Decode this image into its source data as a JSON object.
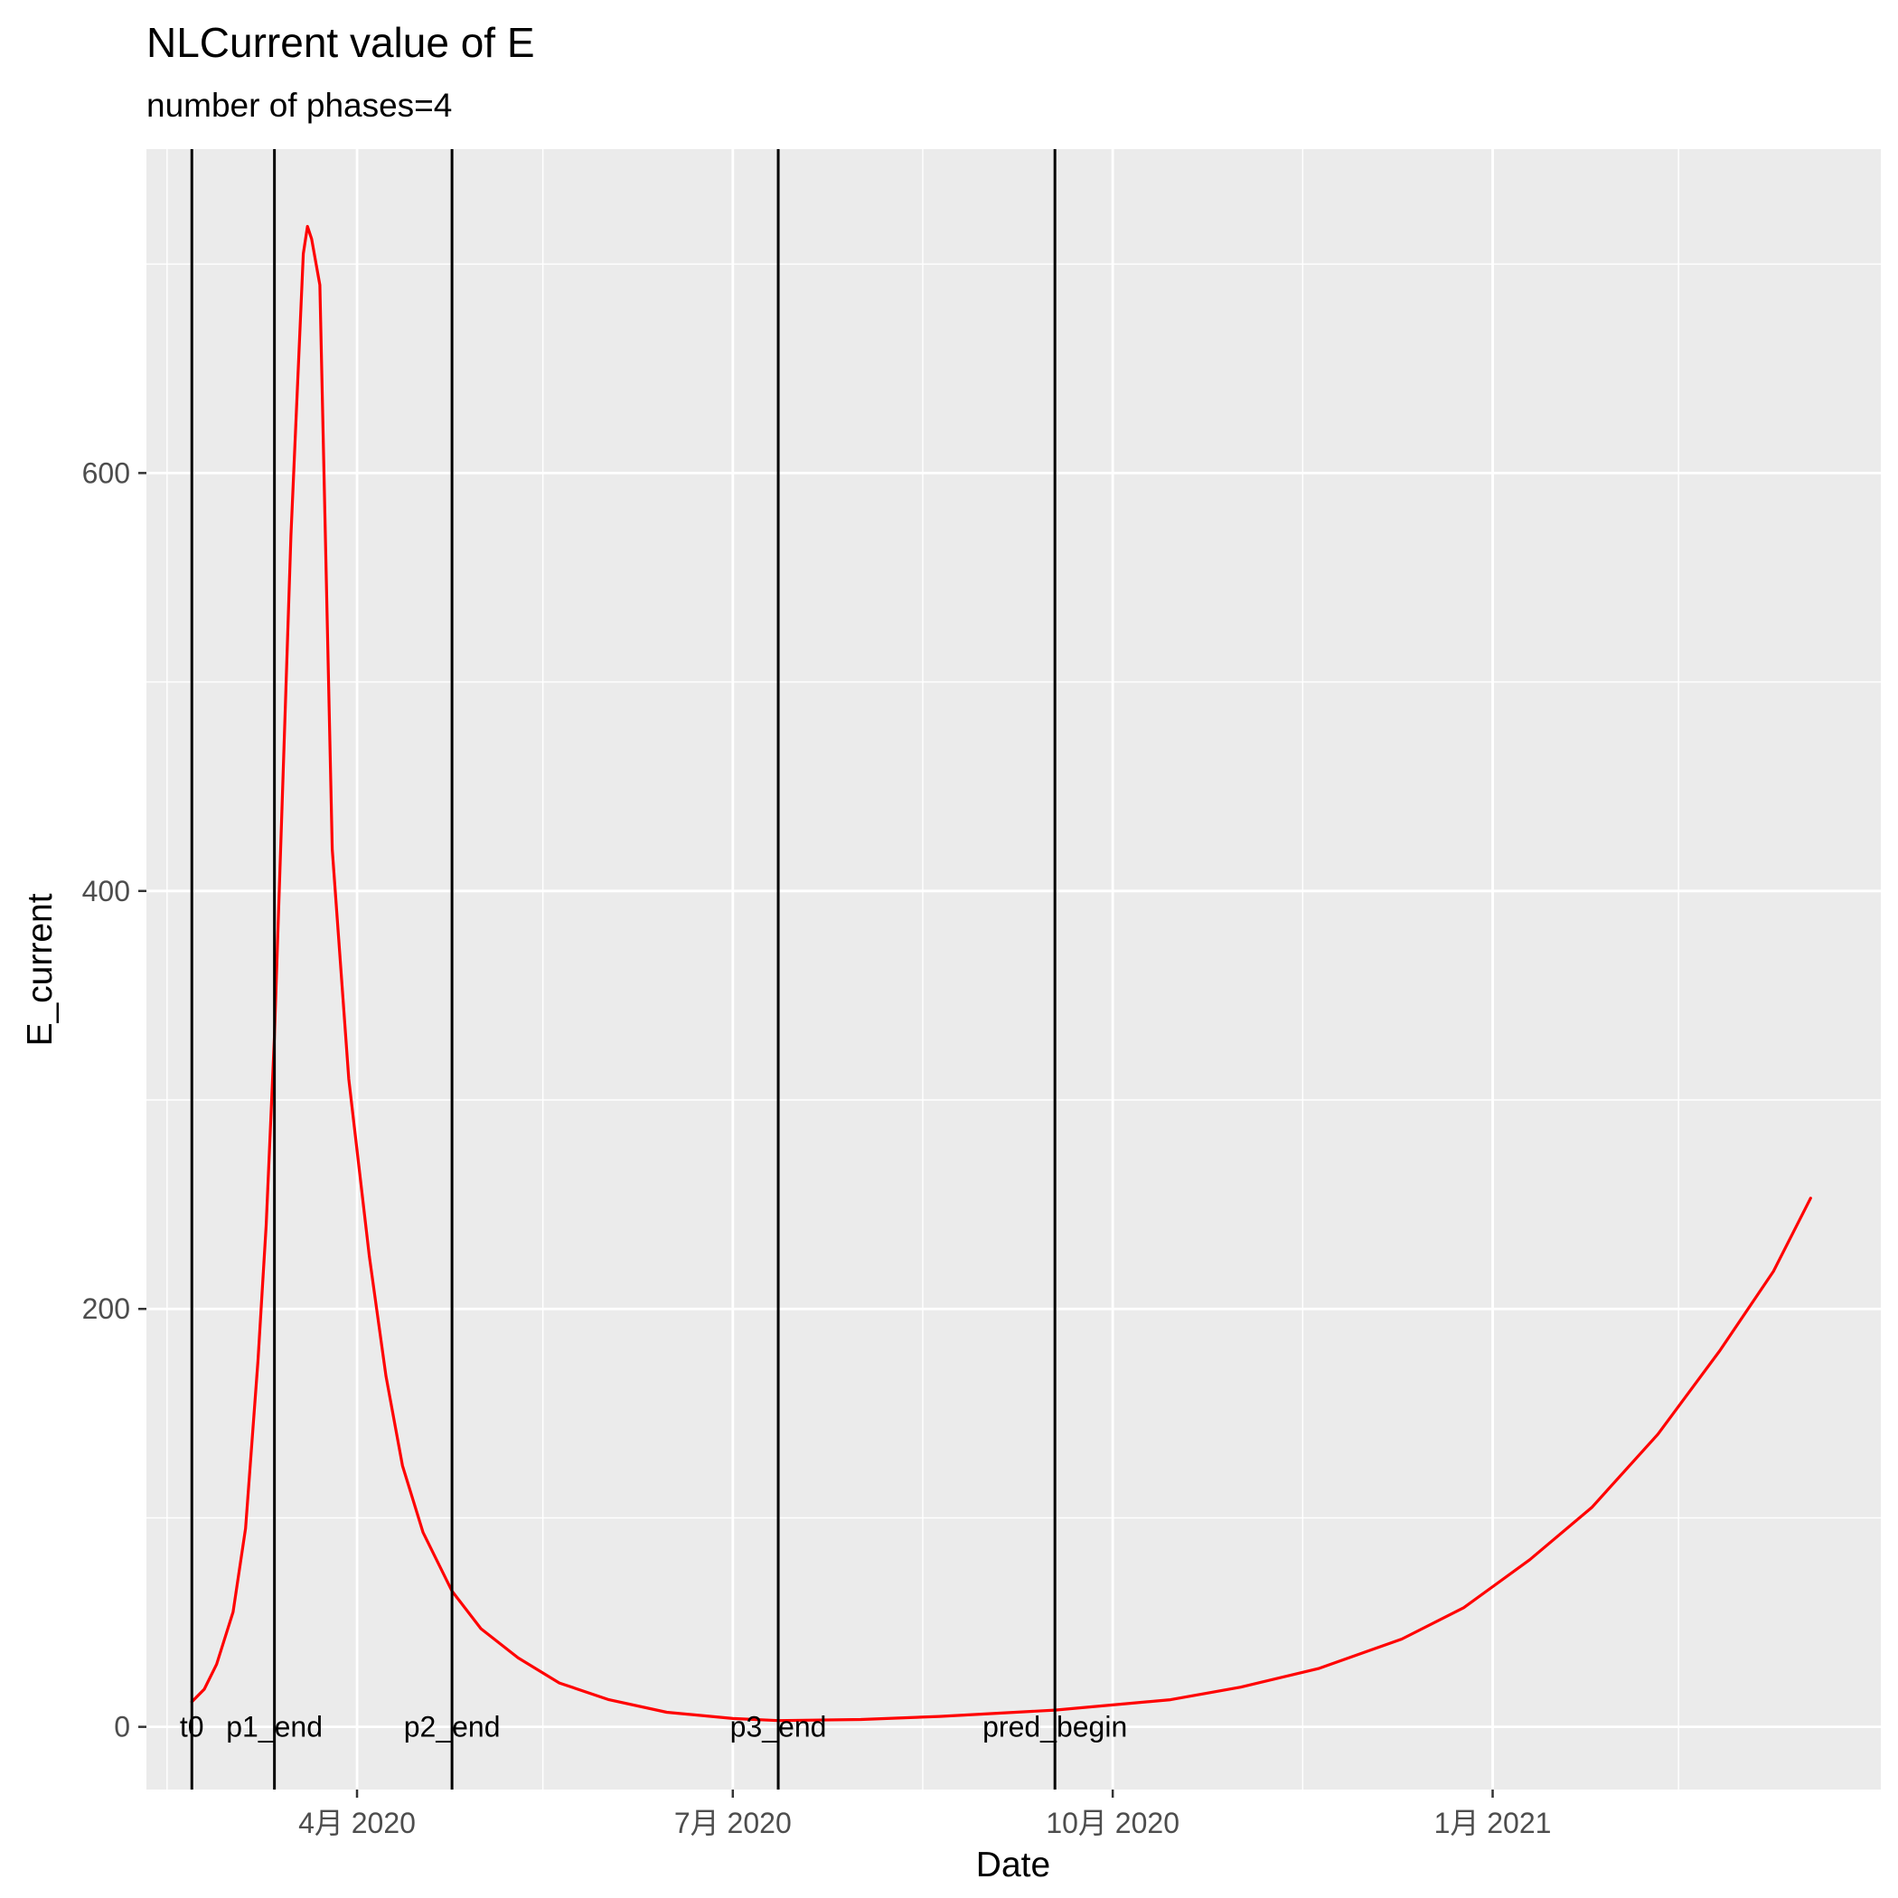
{
  "chart_data": {
    "type": "line",
    "title": "NLCurrent value of E",
    "subtitle": "number of phases=4",
    "xlabel": "Date",
    "ylabel": "E_current",
    "x_scale": "date",
    "xlim": [
      "2020-02-10",
      "2021-04-05"
    ],
    "ylim": [
      -30,
      755
    ],
    "y_ticks": [
      0,
      200,
      400,
      600
    ],
    "y_tick_labels": [
      "0",
      "200",
      "400",
      "600"
    ],
    "x_ticks": [
      "2020-04-01",
      "2020-07-01",
      "2020-10-01",
      "2021-01-01"
    ],
    "x_tick_labels": [
      "4月 2020",
      "7月 2020",
      "10月 2020",
      "1月 2021"
    ],
    "x_minor_ticks": [
      "2020-02-15",
      "2020-05-16",
      "2020-08-16",
      "2020-11-16",
      "2021-02-15"
    ],
    "grid": true,
    "colors": {
      "panel": "#ebebeb",
      "grid": "#ffffff",
      "series": "#ff0000",
      "vlines": "#000000"
    },
    "vlines": [
      {
        "date": "2020-02-21",
        "label": "t0"
      },
      {
        "date": "2020-03-12",
        "label": "p1_end"
      },
      {
        "date": "2020-04-24",
        "label": "p2_end"
      },
      {
        "date": "2020-07-12",
        "label": "p3_end"
      },
      {
        "date": "2020-09-17",
        "label": "pred_begin"
      }
    ],
    "series": [
      {
        "color": "#ff0000",
        "points": [
          [
            "2020-02-21",
            12
          ],
          [
            "2020-02-24",
            18
          ],
          [
            "2020-02-27",
            30
          ],
          [
            "2020-03-02",
            55
          ],
          [
            "2020-03-05",
            95
          ],
          [
            "2020-03-08",
            175
          ],
          [
            "2020-03-10",
            240
          ],
          [
            "2020-03-12",
            330
          ],
          [
            "2020-03-14",
            450
          ],
          [
            "2020-03-16",
            570
          ],
          [
            "2020-03-19",
            705
          ],
          [
            "2020-03-20",
            718
          ],
          [
            "2020-03-21",
            712
          ],
          [
            "2020-03-23",
            690
          ],
          [
            "2020-03-26",
            420
          ],
          [
            "2020-03-30",
            310
          ],
          [
            "2020-04-04",
            225
          ],
          [
            "2020-04-08",
            168
          ],
          [
            "2020-04-12",
            125
          ],
          [
            "2020-04-17",
            93
          ],
          [
            "2020-04-24",
            65
          ],
          [
            "2020-05-01",
            47
          ],
          [
            "2020-05-10",
            33
          ],
          [
            "2020-05-20",
            21
          ],
          [
            "2020-06-01",
            13
          ],
          [
            "2020-06-15",
            7
          ],
          [
            "2020-07-01",
            4
          ],
          [
            "2020-07-12",
            3
          ],
          [
            "2020-08-01",
            3.5
          ],
          [
            "2020-08-20",
            5
          ],
          [
            "2020-09-17",
            8
          ],
          [
            "2020-10-15",
            13
          ],
          [
            "2020-11-01",
            19
          ],
          [
            "2020-11-20",
            28
          ],
          [
            "2020-12-10",
            42
          ],
          [
            "2020-12-25",
            57
          ],
          [
            "2021-01-10",
            80
          ],
          [
            "2021-01-25",
            105
          ],
          [
            "2021-02-10",
            140
          ],
          [
            "2021-02-25",
            180
          ],
          [
            "2021-03-10",
            218
          ],
          [
            "2021-03-19",
            253
          ]
        ]
      }
    ]
  }
}
